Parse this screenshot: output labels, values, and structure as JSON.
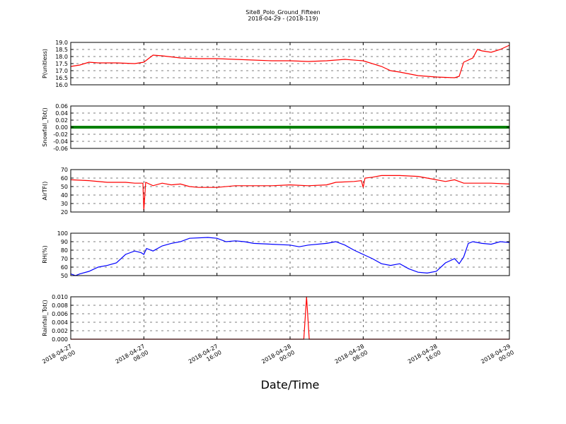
{
  "chart_data": {
    "type": "line",
    "title": "Site8_Polo_Ground_Fifteen",
    "subtitle": "2018-04-29 - (2018-119)",
    "xlabel": "Date/Time",
    "x_ticks": [
      {
        "line1": "2018-04-27",
        "line2": "00:00",
        "hours": 0
      },
      {
        "line1": "2018-04-27",
        "line2": "08:00",
        "hours": 8
      },
      {
        "line1": "2018-04-27",
        "line2": "16:00",
        "hours": 16
      },
      {
        "line1": "2018-04-28",
        "line2": "00:00",
        "hours": 24
      },
      {
        "line1": "2018-04-28",
        "line2": "08:00",
        "hours": 32
      },
      {
        "line1": "2018-04-28",
        "line2": "16:00",
        "hours": 40
      },
      {
        "line1": "2018-04-29",
        "line2": "00:00",
        "hours": 48
      }
    ],
    "xlim_hours": [
      0,
      48
    ],
    "panels": [
      {
        "ylabel": "P(unitless)",
        "ylim": [
          16.0,
          19.0
        ],
        "yticks": [
          "16.0",
          "16.5",
          "17.0",
          "17.5",
          "18.0",
          "18.5",
          "19.0"
        ],
        "color": "#ff0000",
        "grid": true,
        "series": [
          [
            0,
            17.3
          ],
          [
            1,
            17.4
          ],
          [
            2,
            17.6
          ],
          [
            3,
            17.55
          ],
          [
            5,
            17.55
          ],
          [
            7,
            17.5
          ],
          [
            8,
            17.6
          ],
          [
            9,
            18.1
          ],
          [
            10,
            18.05
          ],
          [
            12,
            17.9
          ],
          [
            14,
            17.85
          ],
          [
            16,
            17.85
          ],
          [
            18,
            17.8
          ],
          [
            20,
            17.75
          ],
          [
            22,
            17.7
          ],
          [
            24,
            17.7
          ],
          [
            26,
            17.65
          ],
          [
            28,
            17.7
          ],
          [
            30,
            17.8
          ],
          [
            32,
            17.7
          ],
          [
            34,
            17.3
          ],
          [
            35,
            17.0
          ],
          [
            36,
            16.9
          ],
          [
            38,
            16.65
          ],
          [
            40,
            16.55
          ],
          [
            42,
            16.5
          ],
          [
            42.5,
            16.6
          ],
          [
            43,
            17.6
          ],
          [
            44,
            17.9
          ],
          [
            44.5,
            18.5
          ],
          [
            45,
            18.4
          ],
          [
            46,
            18.3
          ],
          [
            47,
            18.5
          ],
          [
            48,
            18.8
          ]
        ]
      },
      {
        "ylabel": "Snowfall_Tot()",
        "ylim": [
          -0.06,
          0.06
        ],
        "yticks": [
          "-0.06",
          "-0.04",
          "-0.02",
          "0.00",
          "0.02",
          "0.04",
          "0.06"
        ],
        "color": "#008000",
        "grid": true,
        "series": [
          [
            0,
            0
          ],
          [
            48,
            0
          ]
        ]
      },
      {
        "ylabel": "AirTF()",
        "ylim": [
          20,
          70
        ],
        "yticks": [
          "20",
          "30",
          "40",
          "50",
          "60",
          "70"
        ],
        "color": "#ff0000",
        "grid": true,
        "series": [
          [
            0,
            58
          ],
          [
            2,
            57
          ],
          [
            4,
            55
          ],
          [
            6,
            55
          ],
          [
            7,
            54
          ],
          [
            7.9,
            54
          ],
          [
            8,
            22
          ],
          [
            8.2,
            55
          ],
          [
            9,
            51
          ],
          [
            10,
            54
          ],
          [
            11,
            52
          ],
          [
            12,
            53
          ],
          [
            13,
            50
          ],
          [
            14,
            49
          ],
          [
            16,
            49
          ],
          [
            18,
            51
          ],
          [
            20,
            51
          ],
          [
            22,
            51
          ],
          [
            24,
            52
          ],
          [
            26,
            51
          ],
          [
            28,
            52
          ],
          [
            29,
            55
          ],
          [
            31,
            56
          ],
          [
            31.8,
            57
          ],
          [
            32,
            49
          ],
          [
            32.2,
            60
          ],
          [
            33,
            61
          ],
          [
            34,
            63
          ],
          [
            36,
            63
          ],
          [
            38,
            62
          ],
          [
            39,
            60
          ],
          [
            40,
            58
          ],
          [
            41,
            56
          ],
          [
            42,
            58
          ],
          [
            43,
            54
          ],
          [
            44,
            54
          ],
          [
            46,
            54
          ],
          [
            48,
            53
          ]
        ]
      },
      {
        "ylabel": "RH(%)",
        "ylim": [
          50,
          100
        ],
        "yticks": [
          "50",
          "60",
          "70",
          "80",
          "90",
          "100"
        ],
        "color": "#0000ff",
        "grid": true,
        "series": [
          [
            0,
            52
          ],
          [
            0.5,
            50
          ],
          [
            1,
            52
          ],
          [
            2,
            55
          ],
          [
            3,
            60
          ],
          [
            4,
            62
          ],
          [
            5,
            65
          ],
          [
            6,
            75
          ],
          [
            7,
            79
          ],
          [
            7.7,
            77
          ],
          [
            8,
            75
          ],
          [
            8.3,
            82
          ],
          [
            9,
            79
          ],
          [
            10,
            85
          ],
          [
            11,
            88
          ],
          [
            12,
            90
          ],
          [
            13,
            94
          ],
          [
            15,
            95
          ],
          [
            16,
            94
          ],
          [
            17,
            90
          ],
          [
            18,
            91
          ],
          [
            19,
            90
          ],
          [
            20,
            88
          ],
          [
            22,
            87
          ],
          [
            24,
            86
          ],
          [
            25,
            84
          ],
          [
            26,
            86
          ],
          [
            28,
            88
          ],
          [
            29,
            90
          ],
          [
            30,
            86
          ],
          [
            31,
            80
          ],
          [
            32,
            75
          ],
          [
            33,
            70
          ],
          [
            34,
            64
          ],
          [
            35,
            62
          ],
          [
            36,
            64
          ],
          [
            37,
            58
          ],
          [
            38,
            54
          ],
          [
            39,
            53
          ],
          [
            40,
            55
          ],
          [
            41,
            65
          ],
          [
            42,
            70
          ],
          [
            42.5,
            64
          ],
          [
            43,
            72
          ],
          [
            43.5,
            88
          ],
          [
            44,
            90
          ],
          [
            45,
            88
          ],
          [
            46,
            87
          ],
          [
            47,
            90
          ],
          [
            48,
            89
          ]
        ]
      },
      {
        "ylabel": "Rainfall_Tot()",
        "ylim": [
          0.0,
          0.01
        ],
        "yticks": [
          "0.000",
          "0.002",
          "0.004",
          "0.006",
          "0.008",
          "0.010"
        ],
        "color": "#ff0000",
        "grid": true,
        "series": [
          [
            0,
            0
          ],
          [
            25.5,
            0
          ],
          [
            25.8,
            0.01
          ],
          [
            26.1,
            0
          ],
          [
            48,
            0
          ]
        ]
      }
    ]
  }
}
